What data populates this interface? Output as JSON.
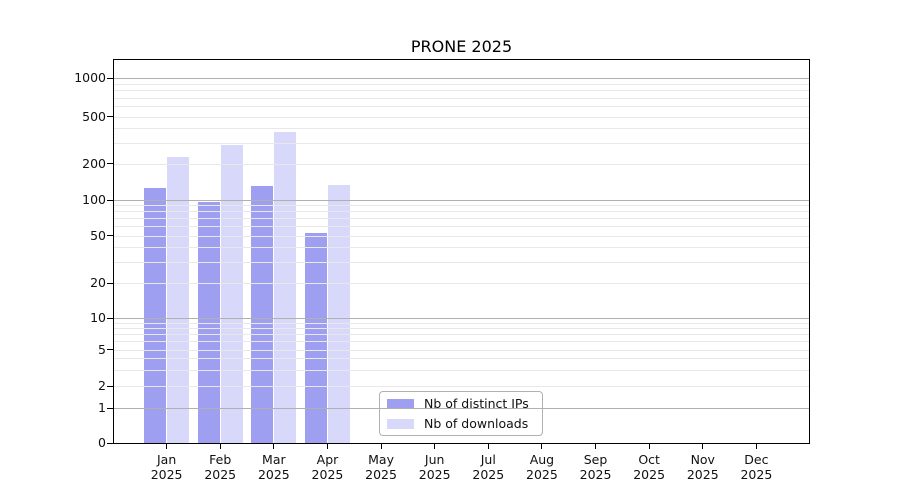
{
  "title": "PRONE 2025",
  "legend": {
    "items": [
      {
        "label": "Nb of distinct IPs",
        "color": "#9f9ff1"
      },
      {
        "label": "Nb of downloads",
        "color": "#d8d8fa"
      }
    ]
  },
  "axes": {
    "y_tick_labels": [
      "1000",
      "500",
      "200",
      "100",
      "50",
      "20",
      "10",
      "5",
      "2",
      "1",
      "0"
    ],
    "y_tick_values": [
      1000,
      500,
      200,
      100,
      50,
      20,
      10,
      5,
      2,
      1,
      0
    ],
    "x_ticks": [
      {
        "month": "Jan",
        "year": "2025"
      },
      {
        "month": "Feb",
        "year": "2025"
      },
      {
        "month": "Mar",
        "year": "2025"
      },
      {
        "month": "Apr",
        "year": "2025"
      },
      {
        "month": "May",
        "year": "2025"
      },
      {
        "month": "Jun",
        "year": "2025"
      },
      {
        "month": "Jul",
        "year": "2025"
      },
      {
        "month": "Aug",
        "year": "2025"
      },
      {
        "month": "Sep",
        "year": "2025"
      },
      {
        "month": "Oct",
        "year": "2025"
      },
      {
        "month": "Nov",
        "year": "2025"
      },
      {
        "month": "Dec",
        "year": "2025"
      }
    ]
  },
  "chart_data": {
    "type": "bar",
    "title": "PRONE 2025",
    "yscale": "symlog",
    "ylim": [
      0,
      1400
    ],
    "y_ticks": [
      0,
      1,
      2,
      5,
      10,
      20,
      50,
      100,
      200,
      500,
      1000
    ],
    "grid": true,
    "legend_position": "lower center",
    "categories": [
      "Jan 2025",
      "Feb 2025",
      "Mar 2025",
      "Apr 2025",
      "May 2025",
      "Jun 2025",
      "Jul 2025",
      "Aug 2025",
      "Sep 2025",
      "Oct 2025",
      "Nov 2025",
      "Dec 2025"
    ],
    "series": [
      {
        "name": "Nb of distinct IPs",
        "color": "#9f9ff1",
        "values": [
          126,
          96,
          131,
          53,
          null,
          null,
          null,
          null,
          null,
          null,
          null,
          null
        ]
      },
      {
        "name": "Nb of downloads",
        "color": "#d8d8fa",
        "values": [
          228,
          288,
          368,
          133,
          null,
          null,
          null,
          null,
          null,
          null,
          null,
          null
        ]
      }
    ]
  },
  "colors": {
    "background": "#ffffff",
    "grid_major": "#b0b0b0",
    "grid_minor": "#e8e8e8",
    "spine": "#000000"
  }
}
